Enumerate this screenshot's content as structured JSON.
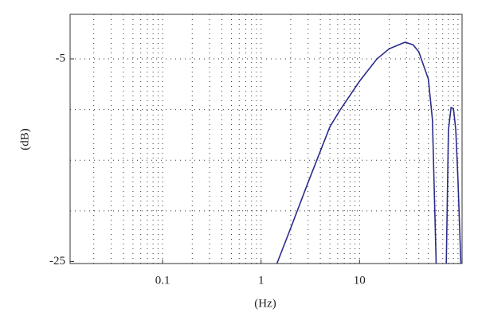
{
  "chart_data": {
    "type": "line",
    "x_label": "(Hz)",
    "y_label": "(dB)",
    "x_scale": "log",
    "xlim": [
      0.0115,
      110
    ],
    "ylim": [
      -25.2,
      -0.6
    ],
    "xticks": [
      0.1,
      1,
      10
    ],
    "yticks": [
      -25,
      -5
    ],
    "x_grid": [
      0.02,
      0.03,
      0.04,
      0.05,
      0.06,
      0.07,
      0.08,
      0.09,
      0.1,
      0.2,
      0.3,
      0.4,
      0.5,
      0.6,
      0.7,
      0.8,
      0.9,
      1,
      2,
      3,
      4,
      5,
      6,
      7,
      8,
      9,
      10,
      20,
      30,
      40,
      50,
      60,
      70,
      80,
      90,
      100
    ],
    "y_grid": [
      -20,
      -15,
      -10,
      -5
    ],
    "grid": true,
    "x": [
      1.45,
      2,
      3,
      5,
      6.4,
      10,
      15,
      20,
      29,
      35,
      40,
      50,
      55,
      60,
      68,
      76,
      80,
      85,
      90,
      95,
      100,
      107
    ],
    "series": [
      {
        "color": "#2b2b8a",
        "values": [
          -25.2,
          -21.7,
          -17.2,
          -11.7,
          -10,
          -7.2,
          -5,
          -4,
          -3.35,
          -3.6,
          -4.3,
          -7,
          -11,
          -25.2,
          null,
          -25.2,
          -12,
          -9.8,
          -9.9,
          -12,
          -17,
          -25.2
        ]
      }
    ]
  }
}
